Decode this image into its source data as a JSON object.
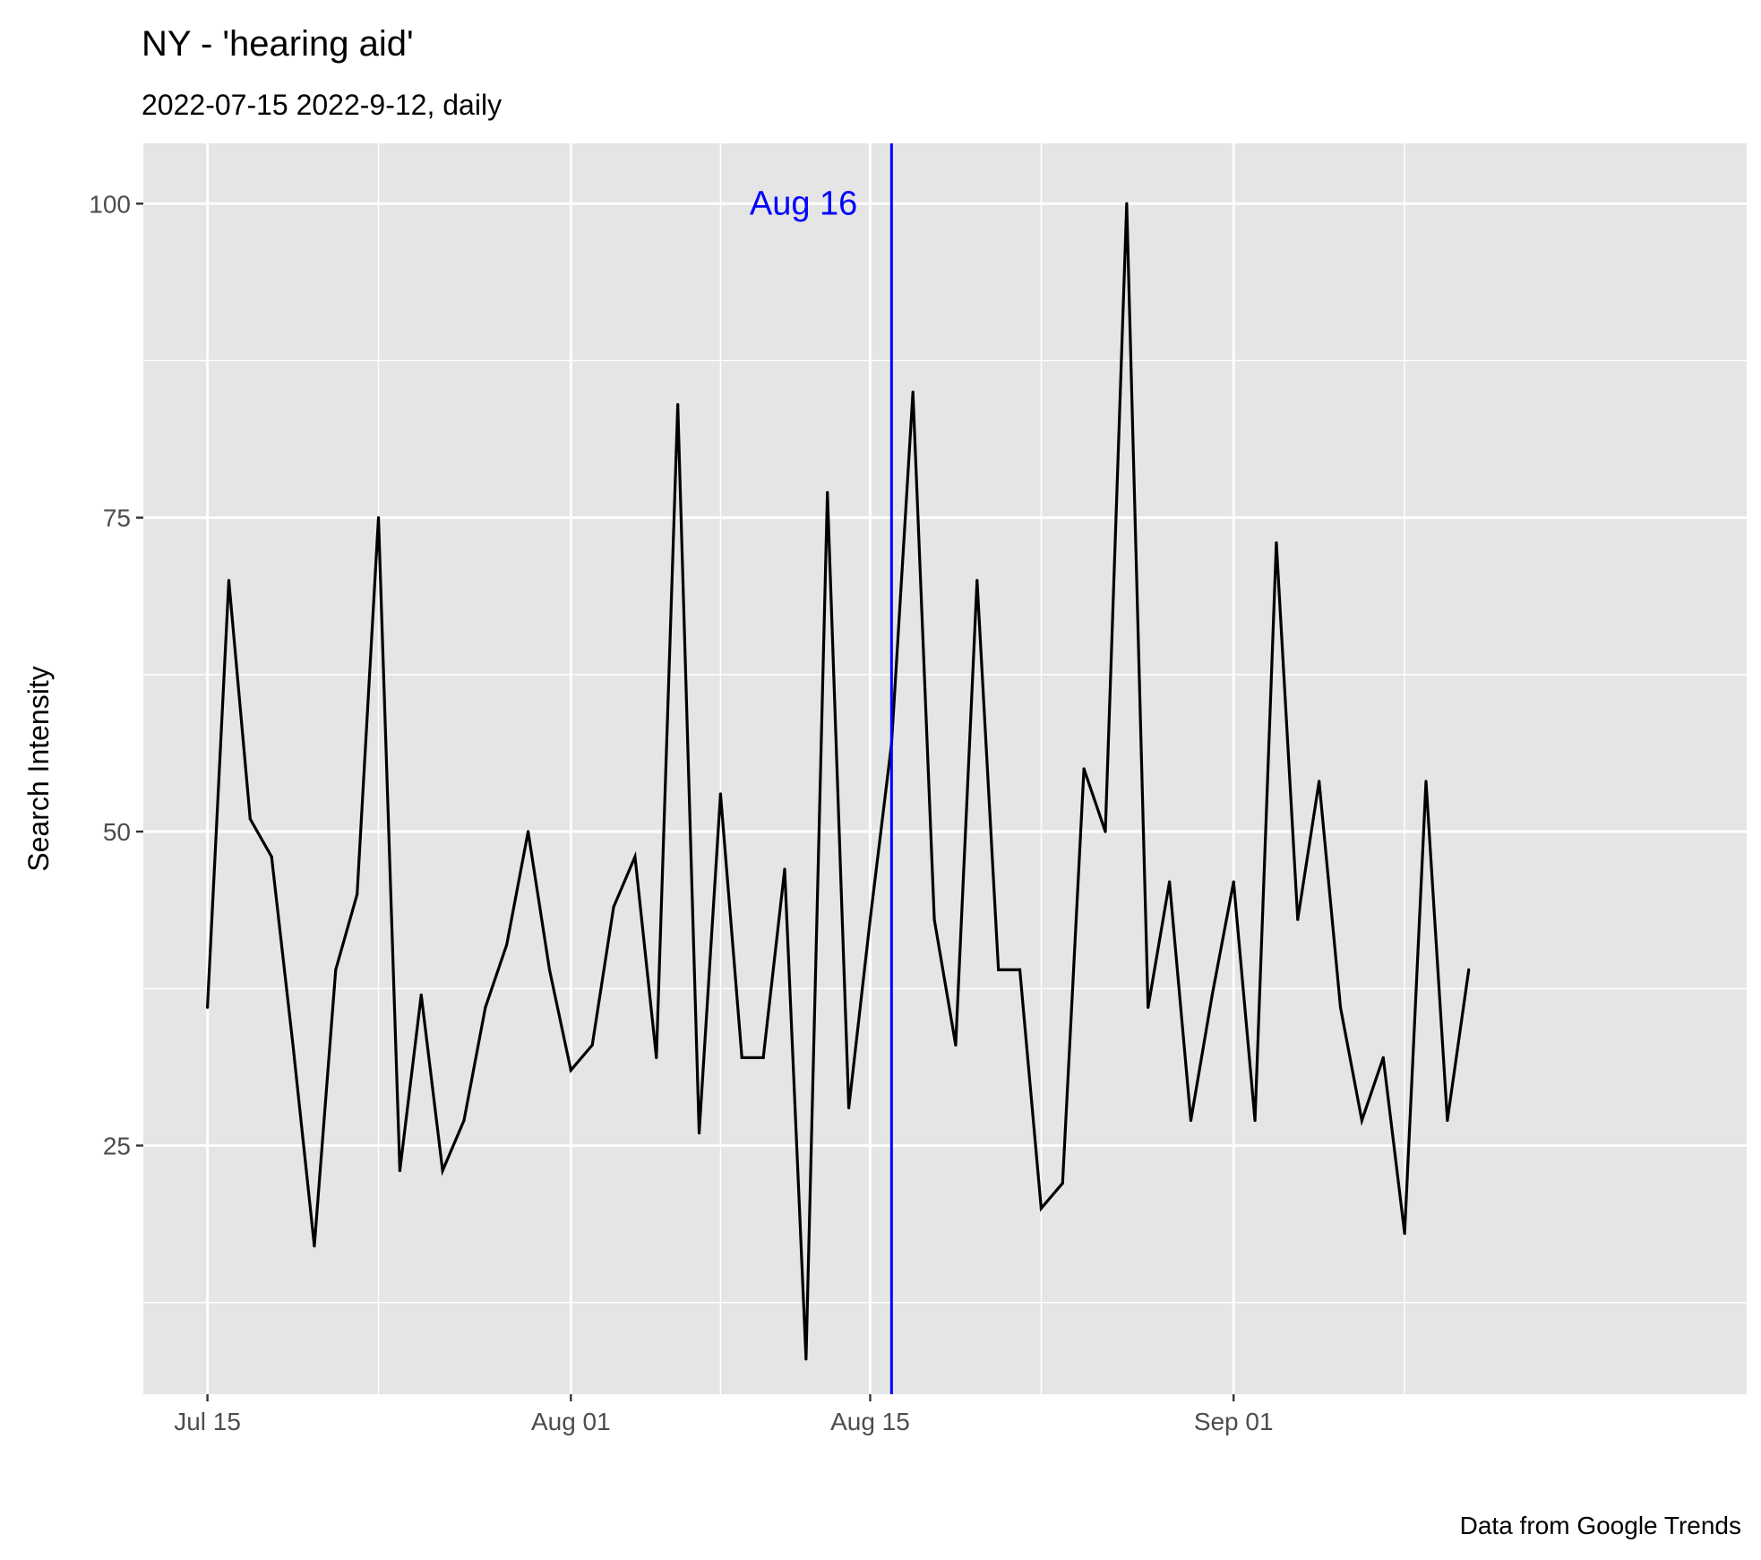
{
  "chart_data": {
    "type": "line",
    "title": "NY  - 'hearing aid'",
    "subtitle": "2022-07-15 2022-9-12, daily",
    "ylabel": "Search Intensity",
    "xlabel": "",
    "caption": "Data from Google Trends",
    "x_start": "2022-07-15",
    "x_end": "2022-09-12",
    "xlim": [
      "2022-07-12",
      "2022-09-25"
    ],
    "ylim": [
      5.2,
      104.8
    ],
    "x_ticks": [
      {
        "date": "2022-07-15",
        "label": "Jul 15"
      },
      {
        "date": "2022-08-01",
        "label": "Aug 01"
      },
      {
        "date": "2022-08-15",
        "label": "Aug 15"
      },
      {
        "date": "2022-09-01",
        "label": "Sep 01"
      }
    ],
    "x_minor_dates": [
      "2022-07-23",
      "2022-08-08",
      "2022-08-23",
      "2022-09-09"
    ],
    "y_ticks": [
      25,
      50,
      75,
      100
    ],
    "y_minor": [
      12.5,
      37.5,
      62.5,
      87.5
    ],
    "grid": true,
    "legend": "none",
    "background": "#e5e5e5",
    "grid_color": "#ffffff",
    "line_color": "#000000",
    "annotation": {
      "date": "2022-08-16",
      "label": "Aug 16",
      "color": "#0000ff",
      "y": 100
    },
    "series": [
      {
        "x": [
          "2022-07-15",
          "2022-07-16",
          "2022-07-17",
          "2022-07-18",
          "2022-07-19",
          "2022-07-20",
          "2022-07-21",
          "2022-07-22",
          "2022-07-23",
          "2022-07-24",
          "2022-07-25",
          "2022-07-26",
          "2022-07-27",
          "2022-07-28",
          "2022-07-29",
          "2022-07-30",
          "2022-07-31",
          "2022-08-01",
          "2022-08-02",
          "2022-08-03",
          "2022-08-04",
          "2022-08-05",
          "2022-08-06",
          "2022-08-07",
          "2022-08-08",
          "2022-08-09",
          "2022-08-10",
          "2022-08-11",
          "2022-08-12",
          "2022-08-13",
          "2022-08-14",
          "2022-08-15",
          "2022-08-16",
          "2022-08-17",
          "2022-08-18",
          "2022-08-19",
          "2022-08-20",
          "2022-08-21",
          "2022-08-22",
          "2022-08-23",
          "2022-08-24",
          "2022-08-25",
          "2022-08-26",
          "2022-08-27",
          "2022-08-28",
          "2022-08-29",
          "2022-08-30",
          "2022-08-31",
          "2022-09-01",
          "2022-09-02",
          "2022-09-03",
          "2022-09-04",
          "2022-09-05",
          "2022-09-06",
          "2022-09-07",
          "2022-09-08",
          "2022-09-09",
          "2022-09-10",
          "2022-09-11",
          "2022-09-12"
        ],
        "values": [
          36,
          70,
          51,
          48,
          33,
          17,
          39,
          45,
          75,
          23,
          37,
          23,
          27,
          36,
          41,
          50,
          39,
          31,
          33,
          44,
          48,
          32,
          84,
          26,
          53,
          32,
          32,
          47,
          8,
          77,
          28,
          43,
          57,
          85,
          43,
          33,
          70,
          39,
          39,
          20,
          22,
          55,
          50,
          100,
          36,
          46,
          27,
          37,
          46,
          27,
          73,
          43,
          54,
          36,
          27,
          32,
          18,
          54,
          27,
          39
        ]
      }
    ]
  }
}
